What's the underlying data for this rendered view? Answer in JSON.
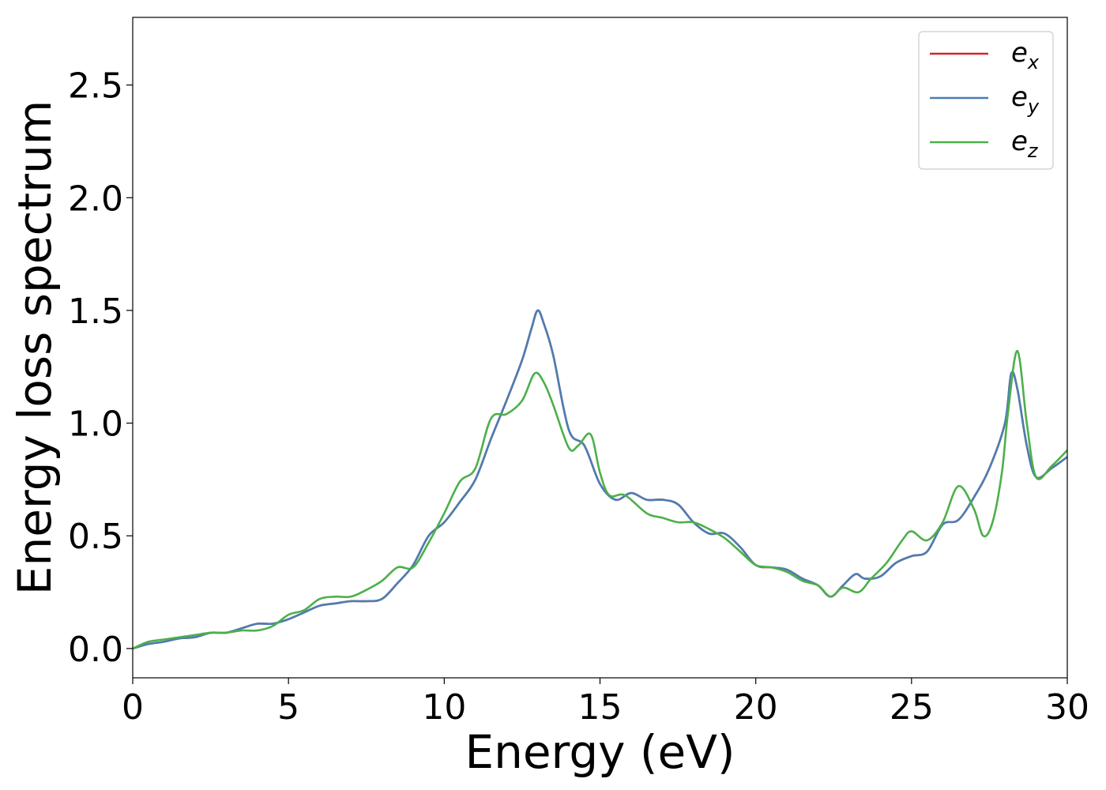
{
  "chart_data": {
    "type": "line",
    "xlabel": "Energy (eV)",
    "ylabel": "Energy loss spectrum",
    "xlim": [
      0,
      30
    ],
    "ylim": [
      -0.13,
      2.8
    ],
    "xticks": [
      0,
      5,
      10,
      15,
      20,
      25,
      30
    ],
    "xtick_labels": [
      "0",
      "5",
      "10",
      "15",
      "20",
      "25",
      "30"
    ],
    "yticks": [
      0.0,
      0.5,
      1.0,
      1.5,
      2.0,
      2.5
    ],
    "ytick_labels": [
      "0.0",
      "0.5",
      "1.0",
      "1.5",
      "2.0",
      "2.5"
    ],
    "grid": false,
    "legend_position": "top-right",
    "series": [
      {
        "name": "e_x",
        "label_base": "e",
        "label_sub": "x",
        "color": "#d62728",
        "x": [
          0,
          0.5,
          1,
          1.5,
          2,
          2.5,
          3,
          3.5,
          4,
          4.5,
          5,
          5.5,
          6,
          6.5,
          7,
          7.5,
          8,
          8.5,
          9,
          9.5,
          10,
          10.5,
          11,
          11.5,
          12,
          12.5,
          12.8,
          13,
          13.2,
          13.5,
          14,
          14.5,
          15,
          15.5,
          16,
          16.5,
          17,
          17.5,
          18,
          18.5,
          19,
          19.5,
          20,
          20.5,
          21,
          21.5,
          22,
          22.4,
          22.8,
          23.2,
          23.5,
          24,
          24.5,
          25,
          25.5,
          26,
          26.5,
          27,
          27.5,
          28,
          28.2,
          28.4,
          28.7,
          29,
          29.5,
          30
        ],
        "y": [
          0.0,
          0.02,
          0.03,
          0.045,
          0.05,
          0.07,
          0.07,
          0.09,
          0.11,
          0.11,
          0.13,
          0.16,
          0.19,
          0.2,
          0.21,
          0.21,
          0.22,
          0.29,
          0.37,
          0.5,
          0.56,
          0.65,
          0.75,
          0.93,
          1.1,
          1.28,
          1.42,
          1.5,
          1.44,
          1.3,
          0.97,
          0.9,
          0.73,
          0.66,
          0.69,
          0.66,
          0.66,
          0.64,
          0.56,
          0.51,
          0.51,
          0.45,
          0.37,
          0.36,
          0.35,
          0.31,
          0.28,
          0.23,
          0.28,
          0.33,
          0.31,
          0.32,
          0.38,
          0.41,
          0.43,
          0.55,
          0.57,
          0.67,
          0.8,
          1.0,
          1.22,
          1.15,
          0.9,
          0.76,
          0.8,
          0.85
        ]
      },
      {
        "name": "e_y",
        "label_base": "e",
        "label_sub": "y",
        "color": "#4a7eb3",
        "x": [
          0,
          0.5,
          1,
          1.5,
          2,
          2.5,
          3,
          3.5,
          4,
          4.5,
          5,
          5.5,
          6,
          6.5,
          7,
          7.5,
          8,
          8.5,
          9,
          9.5,
          10,
          10.5,
          11,
          11.5,
          12,
          12.5,
          12.8,
          13,
          13.2,
          13.5,
          14,
          14.5,
          15,
          15.5,
          16,
          16.5,
          17,
          17.5,
          18,
          18.5,
          19,
          19.5,
          20,
          20.5,
          21,
          21.5,
          22,
          22.4,
          22.8,
          23.2,
          23.5,
          24,
          24.5,
          25,
          25.5,
          26,
          26.5,
          27,
          27.5,
          28,
          28.2,
          28.4,
          28.7,
          29,
          29.5,
          30
        ],
        "y": [
          0.0,
          0.02,
          0.03,
          0.045,
          0.05,
          0.07,
          0.07,
          0.09,
          0.11,
          0.11,
          0.13,
          0.16,
          0.19,
          0.2,
          0.21,
          0.21,
          0.22,
          0.29,
          0.37,
          0.5,
          0.56,
          0.65,
          0.75,
          0.93,
          1.1,
          1.28,
          1.42,
          1.5,
          1.44,
          1.3,
          0.97,
          0.9,
          0.73,
          0.66,
          0.69,
          0.66,
          0.66,
          0.64,
          0.56,
          0.51,
          0.51,
          0.45,
          0.37,
          0.36,
          0.35,
          0.31,
          0.28,
          0.23,
          0.28,
          0.33,
          0.31,
          0.32,
          0.38,
          0.41,
          0.43,
          0.55,
          0.57,
          0.67,
          0.8,
          1.0,
          1.22,
          1.15,
          0.9,
          0.76,
          0.8,
          0.85
        ]
      },
      {
        "name": "e_z",
        "label_base": "e",
        "label_sub": "z",
        "color": "#4daf4a",
        "x": [
          0,
          0.5,
          1,
          1.5,
          2,
          2.5,
          3,
          3.5,
          4,
          4.5,
          5,
          5.5,
          6,
          6.5,
          7,
          7.5,
          8,
          8.5,
          9,
          9.5,
          10,
          10.5,
          11,
          11.5,
          12,
          12.5,
          12.9,
          13.2,
          13.5,
          14,
          14.3,
          14.7,
          15,
          15.3,
          15.8,
          16.5,
          17,
          17.5,
          18,
          18.5,
          19,
          19.5,
          20,
          20.5,
          21,
          21.5,
          22,
          22.4,
          22.8,
          23.3,
          23.7,
          24.2,
          24.7,
          25,
          25.5,
          26,
          26.5,
          27,
          27.3,
          27.6,
          27.9,
          28.1,
          28.4,
          28.7,
          29,
          29.5,
          30
        ],
        "y": [
          0.0,
          0.03,
          0.04,
          0.05,
          0.06,
          0.07,
          0.07,
          0.08,
          0.08,
          0.1,
          0.15,
          0.17,
          0.22,
          0.23,
          0.23,
          0.26,
          0.3,
          0.36,
          0.36,
          0.47,
          0.6,
          0.74,
          0.8,
          1.02,
          1.04,
          1.1,
          1.22,
          1.18,
          1.08,
          0.89,
          0.9,
          0.95,
          0.78,
          0.68,
          0.68,
          0.6,
          0.58,
          0.56,
          0.56,
          0.53,
          0.49,
          0.43,
          0.37,
          0.36,
          0.34,
          0.3,
          0.28,
          0.23,
          0.27,
          0.25,
          0.31,
          0.38,
          0.48,
          0.52,
          0.48,
          0.56,
          0.72,
          0.62,
          0.5,
          0.56,
          0.78,
          1.05,
          1.32,
          1.0,
          0.76,
          0.81,
          0.88
        ]
      }
    ]
  }
}
